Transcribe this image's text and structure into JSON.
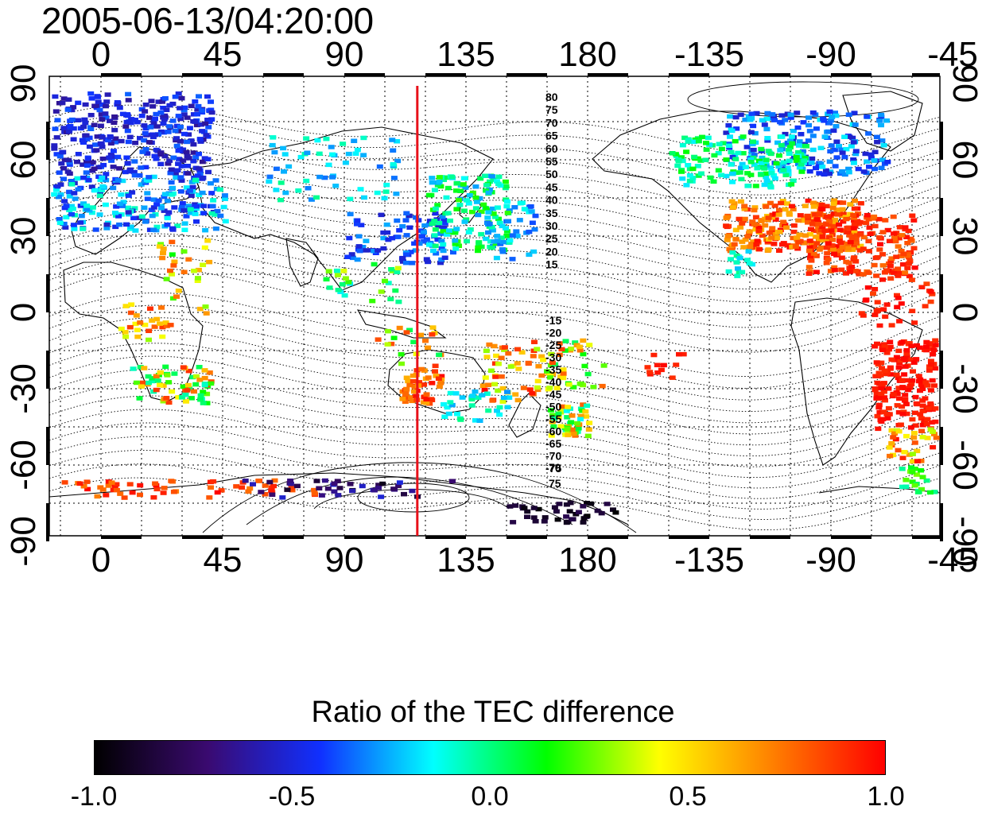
{
  "title": "2005-06-13/04:20:00",
  "map": {
    "lon_ticks_top": [
      "0",
      "45",
      "90",
      "135",
      "180",
      "-135",
      "-90",
      "-45"
    ],
    "lon_ticks_bottom": [
      "0",
      "45",
      "90",
      "135",
      "180",
      "-135",
      "-90",
      "-45"
    ],
    "lat_ticks_left": [
      "90",
      "60",
      "30",
      "0",
      "-30",
      "-60",
      "-90"
    ],
    "lat_ticks_right": [
      "90",
      "60",
      "30",
      "0",
      "-30",
      "-60",
      "-90"
    ],
    "marker_line": {
      "longitude": 117,
      "color": "#e8101a"
    },
    "dip_contour_labels_north": [
      "80",
      "75",
      "70",
      "65",
      "60",
      "55",
      "50",
      "45",
      "40",
      "35",
      "30",
      "25",
      "20",
      "15"
    ],
    "dip_contour_labels_south": [
      "-15",
      "-20",
      "-25",
      "-30",
      "-35",
      "-40",
      "-45",
      "-50",
      "-55",
      "-60",
      "-65",
      "-70",
      "-75"
    ],
    "south_contour_labels": [
      "70",
      "75"
    ]
  },
  "colorbar": {
    "title": "Ratio of the TEC difference",
    "labels": [
      "-1.0",
      "-0.5",
      "0.0",
      "0.5",
      "1.0"
    ],
    "range": [
      -1.0,
      1.0
    ],
    "stops": [
      "#000000",
      "#3a0a70",
      "#1030ff",
      "#00ffff",
      "#00ff00",
      "#ffff00",
      "#ff8000",
      "#ff0000"
    ]
  }
}
